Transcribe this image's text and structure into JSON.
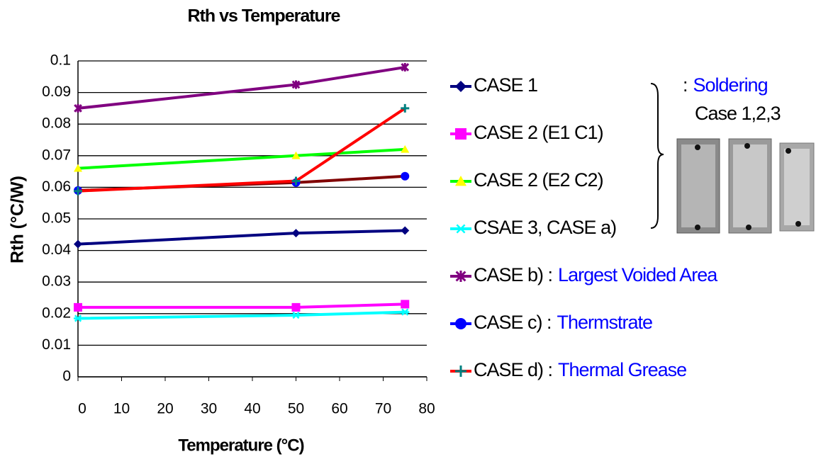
{
  "chart_data": {
    "type": "line",
    "title": "Rth vs Temperature",
    "x_label": "Temperature (°C)",
    "y_label": "Rth (°C/W)",
    "x": [
      0,
      50,
      75
    ],
    "xlim": [
      0,
      80
    ],
    "xticks": [
      0,
      10,
      20,
      30,
      40,
      50,
      60,
      70,
      80
    ],
    "ylim": [
      0,
      0.1
    ],
    "yticks": [
      0,
      0.01,
      0.02,
      0.03,
      0.04,
      0.05,
      0.06,
      0.07,
      0.08,
      0.09,
      0.1
    ],
    "grid": true,
    "series": [
      {
        "name": "CASE 1",
        "color": "#000080",
        "marker": "diamond",
        "marker_color": "#000080",
        "values": [
          0.042,
          0.0455,
          0.0463
        ]
      },
      {
        "name": "CASE 2 (E1 C1)",
        "color": "#ff00ff",
        "marker": "square",
        "marker_color": "#ff00ff",
        "values": [
          0.022,
          0.022,
          0.023
        ]
      },
      {
        "name": "CASE 2 (E2 C2)",
        "color": "#00ff00",
        "marker": "triangle",
        "marker_color": "#ffff00",
        "values": [
          0.066,
          0.07,
          0.072
        ]
      },
      {
        "name": "CSAE 3, CASE a)",
        "color": "#00ffff",
        "marker": "asterisk",
        "marker_color": "#00ffff",
        "values": [
          0.0185,
          0.0195,
          0.0205
        ]
      },
      {
        "name": "CASE b) :",
        "note": "Largest Voided Area",
        "color": "#800080",
        "marker": "xstar",
        "marker_color": "#800080",
        "values": [
          0.085,
          0.0925,
          0.098
        ]
      },
      {
        "name": "CASE c) :",
        "note": "Thermstrate",
        "color": "#800000",
        "marker": "circle",
        "marker_color": "#0000ff",
        "values": [
          0.059,
          0.0615,
          0.0635
        ]
      },
      {
        "name": "CASE d) :",
        "note": "Thermal Grease",
        "color": "#ff0000",
        "marker": "plus",
        "marker_color": "#008080",
        "values": [
          0.0588,
          0.062,
          0.085
        ]
      }
    ],
    "brace_note": {
      "prefix": ":",
      "lines": [
        "Soldering",
        "Case 1,2,3"
      ]
    }
  }
}
